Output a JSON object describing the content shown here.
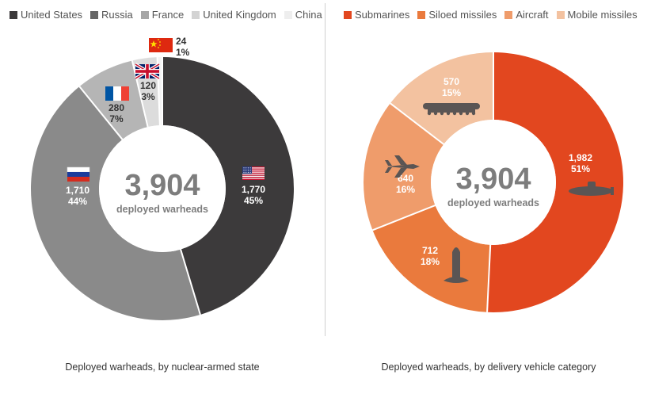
{
  "charts": {
    "left": {
      "legend": [
        {
          "name": "United States",
          "color": "#3c3a3b"
        },
        {
          "name": "Russia",
          "color": "#666666"
        },
        {
          "name": "France",
          "color": "#a6a6a6"
        },
        {
          "name": "United Kingdom",
          "color": "#d3d3d3"
        },
        {
          "name": "China",
          "color": "#eeeeee"
        }
      ],
      "center_total": "3,904",
      "center_label": "deployed warheads",
      "caption": "Deployed warheads, by nuclear-armed state"
    },
    "right": {
      "legend": [
        {
          "name": "Submarines",
          "color": "#e2471f"
        },
        {
          "name": "Siloed missiles",
          "color": "#ea7a3d"
        },
        {
          "name": "Aircraft",
          "color": "#ef9c6b"
        },
        {
          "name": "Mobile missiles",
          "color": "#f3c2a0"
        }
      ],
      "center_total": "3,904",
      "center_label": "deployed warheads",
      "caption": "Deployed warheads, by delivery vehicle category"
    }
  },
  "chart_data": [
    {
      "type": "pie",
      "donut": true,
      "caption": "Deployed warheads, by nuclear-armed state",
      "center_text": "3,904 deployed warheads",
      "categories": [
        "United States",
        "Russia",
        "France",
        "United Kingdom",
        "China"
      ],
      "values": [
        1770,
        1710,
        280,
        120,
        24
      ],
      "percent_labels": [
        "45%",
        "44%",
        "7%",
        "3%",
        "1%"
      ],
      "value_labels": [
        "1,770",
        "1,710",
        "280",
        "120",
        "24"
      ],
      "colors": [
        "#3c3a3b",
        "#8a8a8a",
        "#b5b5b5",
        "#dcdcdc",
        "#f3f3f3"
      ],
      "legend_position": "top"
    },
    {
      "type": "pie",
      "donut": true,
      "caption": "Deployed warheads, by delivery vehicle category",
      "center_text": "3,904 deployed warheads",
      "categories": [
        "Submarines",
        "Siloed missiles",
        "Aircraft",
        "Mobile missiles"
      ],
      "values": [
        1982,
        712,
        640,
        570
      ],
      "percent_labels": [
        "51%",
        "18%",
        "16%",
        "15%"
      ],
      "value_labels": [
        "1,982",
        "712",
        "640",
        "570"
      ],
      "colors": [
        "#e2471f",
        "#ea7a3d",
        "#ef9c6b",
        "#f3c2a0"
      ],
      "legend_position": "top"
    }
  ]
}
